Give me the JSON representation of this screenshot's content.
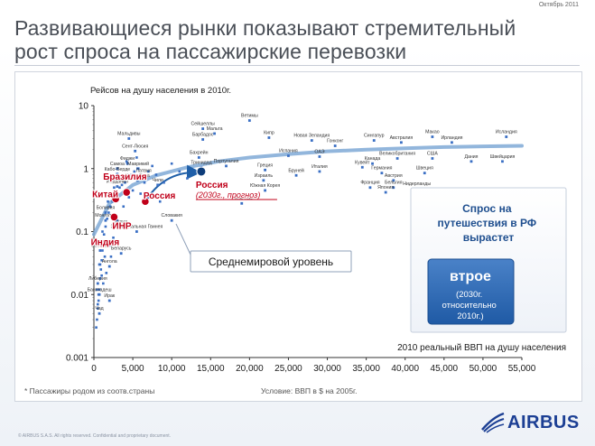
{
  "header": {
    "date": "Октябрь 2011",
    "title_line1": "Развивающиеся рынки показывают стремительный",
    "title_line2": "рост спроса на пассажирские перевозки"
  },
  "footer": {
    "copyright": "© AIRBUS S.A.S. All rights reserved. Confidential and proprietary document.",
    "logo": "AIRBUS"
  },
  "colors": {
    "accent": "#1f5fa8",
    "point": "#3a6fc4",
    "highlight": "#c0001a",
    "curve": "#7fa9d6",
    "logo": "#1c3f94"
  },
  "chart_data": {
    "type": "scatter",
    "ylabel": "Рейсов на душу населения в 2010г.",
    "xlabel": "2010 реальный ВВП на душу населения",
    "xlim": [
      0,
      55000
    ],
    "ylim": [
      0.001,
      10
    ],
    "yscale": "log",
    "x_ticks": [
      "0",
      "5,000",
      "10,000",
      "15,000",
      "20,000",
      "25,000",
      "30,000",
      "35,000",
      "40,000",
      "45,000",
      "50,000",
      "55,000"
    ],
    "y_ticks": [
      "10",
      "1",
      "0.1",
      "0.01",
      "0.001"
    ],
    "footnote_left": "* Пассажиры родом из соотв.страны",
    "footnote_right": "Условие: ВВП в $ на 2005г.",
    "trend_label": "Среднемировой уровень",
    "callout": {
      "heading": "Спрос на путешествия в РФ вырастет",
      "big": "втрое",
      "sub": "(2030г. относительно 2010г.)"
    },
    "highlighted": [
      {
        "name": "Бразилия",
        "x": 4200,
        "y": 0.42
      },
      {
        "name": "Китай",
        "x": 2800,
        "y": 0.33
      },
      {
        "name": "Россия",
        "x": 6600,
        "y": 0.3
      },
      {
        "name": "ИНР",
        "x": 2600,
        "y": 0.17
      },
      {
        "name": "Индия",
        "x": 1000,
        "y": 0.065
      }
    ],
    "projection": {
      "name": "Россия",
      "sublabel": "(2030г., прогноз)",
      "x": 13800,
      "y": 0.9
    },
    "trend_curve": {
      "x": [
        0,
        2000,
        5000,
        8000,
        12000,
        16000,
        20000,
        25000,
        30000,
        35000,
        40000,
        45000,
        50000,
        55000
      ],
      "y": [
        0.09,
        0.28,
        0.55,
        0.78,
        1.05,
        1.3,
        1.5,
        1.7,
        1.88,
        2.0,
        2.1,
        2.2,
        2.26,
        2.3
      ]
    },
    "labeled_points": [
      {
        "name": "Ветимы",
        "x": 20000,
        "y": 5.8
      },
      {
        "name": "Сейшеллы",
        "x": 14000,
        "y": 4.3
      },
      {
        "name": "Мальта",
        "x": 15500,
        "y": 3.6
      },
      {
        "name": "Барбадос",
        "x": 14000,
        "y": 2.9
      },
      {
        "name": "Кипр",
        "x": 22500,
        "y": 3.1
      },
      {
        "name": "Новая Зеландия",
        "x": 28000,
        "y": 2.8
      },
      {
        "name": "Гонконг",
        "x": 31000,
        "y": 2.3
      },
      {
        "name": "Сингапур",
        "x": 36000,
        "y": 2.8
      },
      {
        "name": "Макао",
        "x": 43500,
        "y": 3.2
      },
      {
        "name": "Исландия",
        "x": 53000,
        "y": 3.2
      },
      {
        "name": "Австралия",
        "x": 39500,
        "y": 2.6
      },
      {
        "name": "Ирландия",
        "x": 46000,
        "y": 2.6
      },
      {
        "name": "Мальдивы",
        "x": 4500,
        "y": 3.0
      },
      {
        "name": "Сент-Люсия",
        "x": 5300,
        "y": 1.9
      },
      {
        "name": "Фиджи",
        "x": 4300,
        "y": 1.2
      },
      {
        "name": "Самоа",
        "x": 3000,
        "y": 1.0
      },
      {
        "name": "Маврикий",
        "x": 5700,
        "y": 1.0
      },
      {
        "name": "Кабо-Верде",
        "x": 3000,
        "y": 0.82
      },
      {
        "name": "Коста-Рика",
        "x": 5600,
        "y": 0.65
      },
      {
        "name": "Иордания",
        "x": 3000,
        "y": 0.52
      },
      {
        "name": "Латвия",
        "x": 6400,
        "y": 0.78
      },
      {
        "name": "Чили",
        "x": 8200,
        "y": 0.55
      },
      {
        "name": "Бахрейн",
        "x": 13500,
        "y": 1.5
      },
      {
        "name": "Тринидад",
        "x": 13800,
        "y": 1.05
      },
      {
        "name": "Португалия",
        "x": 17000,
        "y": 1.1
      },
      {
        "name": "Израиль",
        "x": 21800,
        "y": 0.65
      },
      {
        "name": "Испания",
        "x": 25000,
        "y": 1.6
      },
      {
        "name": "ОАЭ",
        "x": 29000,
        "y": 1.55
      },
      {
        "name": "Италия",
        "x": 29000,
        "y": 0.9
      },
      {
        "name": "Бруней",
        "x": 26000,
        "y": 0.78
      },
      {
        "name": "Греция",
        "x": 22000,
        "y": 0.95
      },
      {
        "name": "Южная Корея",
        "x": 22000,
        "y": 0.45
      },
      {
        "name": "Словения",
        "x": 19000,
        "y": 0.28
      },
      {
        "name": "Кувейт",
        "x": 34500,
        "y": 1.05
      },
      {
        "name": "Канада",
        "x": 35800,
        "y": 1.2
      },
      {
        "name": "Германия",
        "x": 37000,
        "y": 0.85
      },
      {
        "name": "Великобритания",
        "x": 39000,
        "y": 1.45
      },
      {
        "name": "США",
        "x": 43500,
        "y": 1.45
      },
      {
        "name": "Дания",
        "x": 48500,
        "y": 1.3
      },
      {
        "name": "Швейцария",
        "x": 52500,
        "y": 1.3
      },
      {
        "name": "Австрия",
        "x": 38500,
        "y": 0.65
      },
      {
        "name": "Франция",
        "x": 35500,
        "y": 0.5
      },
      {
        "name": "Бельгия",
        "x": 38500,
        "y": 0.5
      },
      {
        "name": "Швеция",
        "x": 42500,
        "y": 0.85
      },
      {
        "name": "Нидерланды",
        "x": 41500,
        "y": 0.48
      },
      {
        "name": "Япония",
        "x": 37500,
        "y": 0.42
      },
      {
        "name": "Боливия",
        "x": 1500,
        "y": 0.2
      },
      {
        "name": "Монголия",
        "x": 1500,
        "y": 0.15
      },
      {
        "name": "Экваториальная Гвинея",
        "x": 5500,
        "y": 0.1
      },
      {
        "name": "Словакия",
        "x": 10000,
        "y": 0.15
      },
      {
        "name": "Гуана",
        "x": 3500,
        "y": 0.12
      },
      {
        "name": "Сенегал",
        "x": 800,
        "y": 0.05
      },
      {
        "name": "Беларусь",
        "x": 3500,
        "y": 0.045
      },
      {
        "name": "Ангола",
        "x": 2000,
        "y": 0.028
      },
      {
        "name": "Либерия",
        "x": 500,
        "y": 0.015
      },
      {
        "name": "Бангладеш",
        "x": 700,
        "y": 0.01
      },
      {
        "name": "Ирак",
        "x": 2000,
        "y": 0.008
      },
      {
        "name": "Чад",
        "x": 700,
        "y": 0.005
      }
    ],
    "extra_points": {
      "x": [
        300,
        400,
        500,
        600,
        700,
        800,
        900,
        1000,
        1100,
        1200,
        1300,
        1500,
        1700,
        1900,
        2100,
        2400,
        2700,
        3000,
        3300,
        3600,
        4000,
        4400,
        4800,
        5200,
        5600,
        6000,
        6500,
        7000,
        7500,
        8000,
        9000,
        10000,
        11000,
        12000,
        1000,
        800,
        1200,
        1400,
        2000,
        2500,
        3000,
        3800,
        4500,
        5000,
        6000,
        7000,
        8500,
        600,
        900,
        1100,
        1600,
        2200,
        500,
        400,
        700,
        1800,
        2600,
        3200,
        4200,
        5500
      ],
      "y": [
        0.003,
        0.004,
        0.006,
        0.008,
        0.012,
        0.018,
        0.025,
        0.035,
        0.05,
        0.07,
        0.09,
        0.12,
        0.16,
        0.2,
        0.25,
        0.3,
        0.35,
        0.4,
        0.5,
        0.55,
        0.6,
        0.7,
        0.8,
        0.9,
        1.0,
        0.7,
        0.6,
        0.9,
        1.1,
        0.8,
        0.6,
        1.2,
        0.9,
        0.7,
        0.02,
        0.03,
        0.015,
        0.04,
        0.06,
        0.08,
        0.15,
        0.25,
        0.35,
        0.45,
        0.4,
        0.35,
        0.3,
        0.01,
        0.06,
        0.1,
        0.022,
        0.04,
        0.007,
        0.012,
        0.03,
        0.3,
        0.5,
        0.7,
        1.3,
        1.5
      ]
    }
  }
}
